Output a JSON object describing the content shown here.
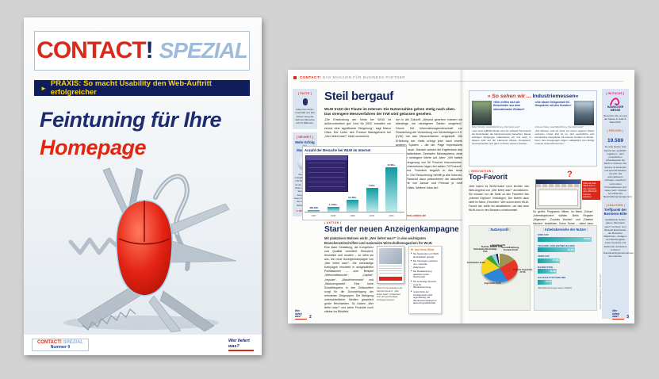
{
  "cover": {
    "masthead": {
      "title": "CONTACT",
      "bang": "!",
      "subtitle": "SPEZIAL"
    },
    "banner": "PRAXIS: So macht Usability den Web-Auftritt erfolgreicher",
    "headline_line1": "Feintuning für Ihre",
    "headline_line2": "Homepage",
    "footer": {
      "mag_red": "CONTACT!",
      "mag_blue": "SPEZIAL",
      "issue": "Nummer 9",
      "logo": "Wer liefert was?"
    }
  },
  "spread": {
    "header": {
      "brand": "CONTACT!",
      "tagline": "DAS MAGAZIN FÜR BUSINESS-PARTNER"
    },
    "left_page": {
      "sidebar": {
        "facts_label": "[ FACTS ]",
        "facts_caption": "Daten bei Visits: Innerhalb von fünf Jahren stieg die Zahl der Besuche auf 13 Millionen.",
        "neuheit_label": "[ NEUHEIT ]",
        "neuheit_title": "Mehr Erfolg im Marketing",
        "neuheit_text": "Die aktuelle Ausgabe der WLW CD-MARKETING ist da. Alle Details finden Sie auf den Seiten dieser Ausgabe. Dort lesen Sie auch, wie die CD-Tour im WLW-Shop an.",
        "neuheit_link": "➔ shop.wlw.de"
      },
      "article1": {
        "title": "Steil bergauf",
        "lede": "WLW trotzt der Flaute im Internet. Die Nutzerzahlen gehen stetig nach oben. Das strengere Messverfahren der IVW wird gelassen gesehen.",
        "col1": "„Die Entwicklung der Visits bei WLW ist außerordentlich gut. Und für 2002 erwarten wir erneut eine signifikante Steigerung“, sagt Marco Oliva. Der Leiter des Product Management bei „Wer liefert was?“ blickt zuversicht-",
        "col2": "lich in die Zukunft. „Absolut gesehen müssen wir allerdings mit niedrigeren Zahlen umgehen.“ Grund: Die Informationsgemeinschaft zur Feststellung der Verbreitung von Werbeträgern e.V. (IVW) hat das Messverfahren umgestellt. Die Erhebung der Visits erfolgt jetzt nach einem anderen System – die der Page Impressions übrigens auch. Danach weisen die Ergebnisse des neuen skalierbaren Zentralen Messsystems zwar erfreulich niedrigere Werte auf. Aber: „Wir hatten eine Verringerung von 50 Prozent hinzunehmen. Andere Unternehmen lagen bei satten 70 Prozent“, sagt Oliva. Trotzdem begrüßt er das neue Verfahren: Die Reduzierung betrifft ja alle Internet-Seiten. Passend dazu präsentieren die aktuellen Messwerte von Januar und Februar je rund 800.000 Visits. Weitere Infos bei:",
        "link": "➔ www.ivw-online.de"
      },
      "article2": {
        "label": "| AKTION |",
        "title": "Start der neuen Anzeigenkampagne",
        "lede": "Mit plakativen Motiven wirbt „Wer liefert was?“ in den wichtigsten Branchenzeitschriften und nationalen Wirtschaftsmagazinen für WLW.",
        "col1": "Eine klare Gestaltung, die Kompetenz und Qualität vermittelt. Reduziert, freundlich und modern – so sieht sie aus, die neue Anzeigenkampagne von „Wer liefert was?“. Die mehrstufige Kampagne erscheint in ausgewählten Publikationen – zum Beispiel „Wirtschaftswoche“, „Capital“, „Impulse“, „Maschinenmarkt“ und „Werkzeugmarkt“. Eine hohe Schaltfrequenz in den Zeitschriften sorgt für die Durchdringung der relevanten Zielgruppen. Die Belegung unterschiedlicher Medien garantiert große Reichweiten. So rücken „Wer liefert was?“ und seine Produkte noch stärker ins Blickfeld.",
        "caption": "Klare Kommunikation der Kernkompetenz: „Wer liefert was?“ präsentiert sich auf ganzseitigen Anzeigenmotiven.",
        "glance": {
          "title": "Auf einen Blick",
          "items": [
            "Die Neukunden von WLW als Einkäufer gezeigt.",
            "Die Kampagne erscheint neu, relevante Zielgruppen.",
            "Die Mediastreuung garantiert große Reichweiten.",
            "Die eindeutige Sprache sorgt für Wiedererkennung.",
            "Jedes Motiv der Anzeigenserie wirkt eigenständig, die Wiedererkennbarkeit ist dennoch gewährleistet."
          ]
        }
      },
      "page_number": "2",
      "logo": "Wer liefert was?"
    },
    "right_page": {
      "quote_box": {
        "title_red": "» So sehen wir ...",
        "title_dark": " Industriemessen«",
        "left": {
          "quote": "«Hier treffen sich die Entscheider aus dem internationalen Einkauf»",
          "name": "Peter Schulze, Geschäftsführung „Wer liefert was?“",
          "text": "„Laut einer EMNID-Studie sind wir weltweit Top-Favorit der Entscheider, die Industriemessen besuchen. Dieser wichtigen Zielgruppe präsentieren wir uns auch in diesem Jahr auf der Hannover Messe. Kompetent, serviceorientiert und ganz im Sinne unserer Kunden.“"
        },
        "right": {
          "quote": "«Die ideale Gelegenheit für Gespräche mit den Kunden»",
          "name": "Andreas Palas, Geschäftsführung „Wer liefert was?“",
          "text": "„Auf Messen sind wir stets mit einem eigenen Stand vertreten. Unser Ziel ist es, dort persönliche und konstruktive Gespräche mit unseren Kunden zu führen. Denn ihre Anregungen tragen maßgeblich zum Erfolg unseres Unternehmens bei.“"
        }
      },
      "article3": {
        "label": "| INNOVATION |",
        "title": "Top-Favorit",
        "col1": "Jetzt haben es WLW-Nutzer noch leichter, das Web-Angebot von „Wer liefert was?“ anzusteuern. Sie müssen nur die Seite zu den Favoriten des „Internet Explorer“ hinzufügen. Der Befehl dazu steht im Menü „Favoriten“. Wer schon einen WLW-Favorit hat, sollte ihn aktualisieren, um das neue WLW-Icon in den Browser zu bekommen.",
        "col2": "So geht's: Programm öffnen, im Menü „Extras“ „Internetoptionen“ wählen. Beim Register „Allgemein“ „Cookies löschen“ und „Dateien löschen“ bestätigen. Keine Sorge – dabei kann nichts passieren.",
        "caption": "Fällt auf: Das WLW-Icon in den Favoriten des „Microsoft Internet Explorer“.",
        "question_mark": "?"
      },
      "credit": "Quelle: Nutzerbefragung „Wer liefert was?“",
      "page_number": "3",
      "logo": "Wer liefert was?"
    },
    "right_sidebar": {
      "focus_label": "[ IM FOCUS ]",
      "messe_name": "HANNOVER MESSE",
      "messe_text": "Besuchen Sie uns auf der Messe in Halle 5, Stand E33.",
      "rekord_label": "[ REKORD ]",
      "rekord_number": "19.569",
      "rekord_text": "So viele Nutzer sind bereits bei „myWLW“ registriert – dem persönlichen Arbeitsbereich bei WLW im Internet. Der Service ist kostenlos und spart Einkäufern viel Zeit: Sie automatisieren Anfragen, speichern und nutzen Firmenadressen und vieles mehr. Optimal für effizientes Beschaffungsmanagement.",
      "analysen_label": "| ANALYSEN |",
      "analysen_title": "Treffpunkt der Business-Elite",
      "analysen_text": "Qualifizierte Nutzer gehen „Wer liefert was?“ ins Netz: zum Beispiel Entscheider der Branchen Maschinen-, Anlagen- und Werkzeugbau sowie Gewerbe und Elektronik. Außerdem vertreten: Dienstleistungsunternehmen der Industrie."
    }
  },
  "chart_data": [
    {
      "type": "bar",
      "title": "Anzahl der Besuche bei WLW im Internet",
      "categories": [
        "1997",
        "1998",
        "1999",
        "2000",
        "2001"
      ],
      "values": [
        0.439,
        1.4,
        3.4,
        7,
        13
      ],
      "value_labels": [
        "439.000",
        "1,4 Mio.",
        "3,4 Mio.",
        "7 Mio.",
        "13 Mio."
      ],
      "xlabel": "Jahr",
      "ylabel": "Visits",
      "ylim": [
        0,
        13
      ],
      "legend": "none",
      "grid": false
    },
    {
      "type": "pie",
      "title": "Nutzerprofil",
      "slices": [
        {
          "label": "Geschäftsführung, Vorstand",
          "pct": "15,2%",
          "value": 15.2,
          "color": "#9d9455"
        },
        {
          "label": "Leitende Angestellte",
          "pct": "27,5%",
          "value": 27.5,
          "color": "#e8352a"
        },
        {
          "label": "Angestellte",
          "pct": "24,2%",
          "value": 24.2,
          "color": "#2b86d9"
        },
        {
          "label": "Facharbeiter",
          "pct": "19,8%",
          "value": 19.8,
          "color": "#f7d41d"
        },
        {
          "label": "Selbständig Berufstätige",
          "pct": "5,9%",
          "value": 5.9,
          "color": "#3fa03c"
        },
        {
          "label": "Studium, Schüler",
          "pct": "4,2%",
          "value": 4.2,
          "color": "#8fd0e8"
        },
        {
          "label": "Beamte",
          "pct": "1,7%",
          "value": 1.7,
          "color": "#222222"
        },
        {
          "label": "Sonstige",
          "pct": "1,5%",
          "value": 1.5,
          "color": "#ffffff"
        }
      ],
      "legend": "labels around pie"
    },
    {
      "type": "bar",
      "title": "Arbeitsbereiche der Nutzer",
      "orientation": "horizontal",
      "categories": [
        "Einkauf",
        "Technik und Entwicklung",
        "Verkauf",
        "Marketing",
        "Geschäftsführung"
      ],
      "values": [
        67.6,
        46.7,
        27.9,
        24.3,
        18.5
      ],
      "value_labels": [
        "67,6%",
        "46,7%",
        "27,9%",
        "24,3%",
        "18,5%"
      ],
      "footnote": "(Mehrfachnennungen waren möglich)",
      "xlim": [
        0,
        70
      ]
    }
  ],
  "colors": {
    "brand_red": "#d8291a",
    "navy": "#16265e",
    "link_red": "#d8291a",
    "sidebar_blue": "#dbe5f2",
    "banner_navy": "#0f1e5b",
    "banner_yellow": "#ffd200",
    "teal_bar": "#16a0a6",
    "magenta": "#e6007e"
  }
}
